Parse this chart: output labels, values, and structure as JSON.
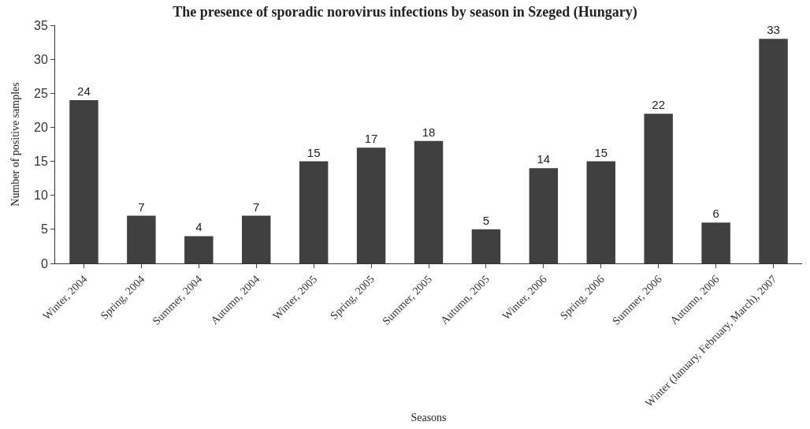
{
  "chart_data": {
    "type": "bar",
    "title": "The presence of sporadic norovirus infections by season in Szeged (Hungary)",
    "xlabel": "Seasons",
    "ylabel": "Number of positive samples",
    "categories": [
      "Winter, 2004",
      "Spring, 2004",
      "Summer, 2004",
      "Autumn, 2004",
      "Winter, 2005",
      "Spring, 2005",
      "Summer, 2005",
      "Autumn, 2005",
      "Winter, 2006",
      "Spring, 2006",
      "Summer, 2006",
      "Autumn, 2006",
      "Winter (January, February, March), 2007"
    ],
    "values": [
      24,
      7,
      4,
      7,
      15,
      17,
      18,
      5,
      14,
      15,
      22,
      6,
      33
    ],
    "color": "#404040",
    "ylim": [
      0,
      35
    ],
    "yticks": [
      0,
      5,
      10,
      15,
      20,
      25,
      30,
      35
    ],
    "grid": false,
    "data_labels": true
  }
}
